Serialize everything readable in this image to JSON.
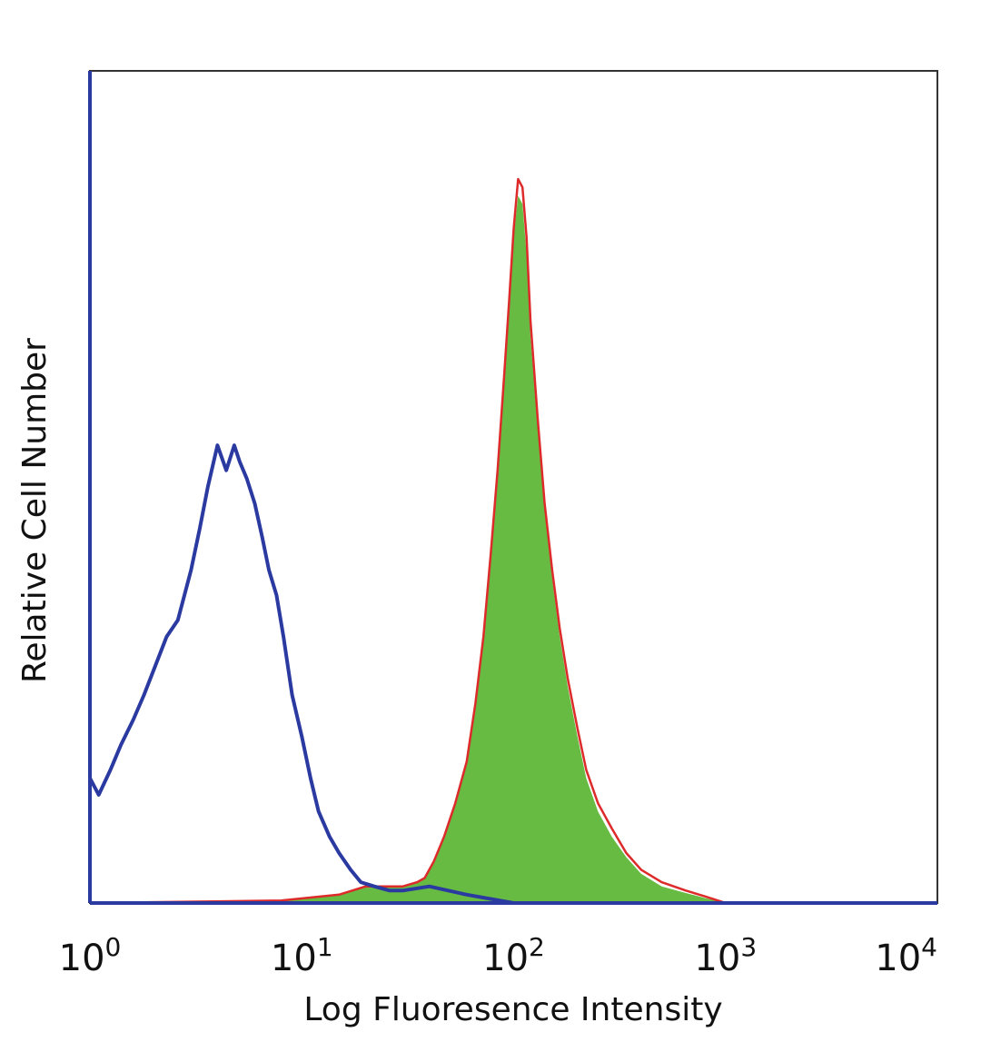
{
  "chart_data": {
    "type": "area",
    "title": "",
    "xlabel": "Log Fluoresence Intensity",
    "ylabel": "Relative Cell Number",
    "x_scale": "log",
    "xlim": [
      1,
      10000
    ],
    "ylim": [
      0,
      1
    ],
    "grid": false,
    "legend": "none",
    "x_ticks": [
      {
        "base": "10",
        "exp": "0",
        "value": 1
      },
      {
        "base": "10",
        "exp": "1",
        "value": 10
      },
      {
        "base": "10",
        "exp": "2",
        "value": 100
      },
      {
        "base": "10",
        "exp": "3",
        "value": 1000
      },
      {
        "base": "10",
        "exp": "4",
        "value": 10000
      }
    ],
    "series": [
      {
        "color": "#2a3aa0",
        "style": "outline",
        "x": [
          1.0,
          1.1,
          1.25,
          1.4,
          1.6,
          1.8,
          2.0,
          2.3,
          2.6,
          3.0,
          3.3,
          3.6,
          4.0,
          4.4,
          4.8,
          5.1,
          5.5,
          6.0,
          6.5,
          7.0,
          7.6,
          8.2,
          9.0,
          10.0,
          11.0,
          12.0,
          13.5,
          15.0,
          17.0,
          19.0,
          22.0,
          26.0,
          30.0,
          40.0,
          60.0,
          100.0
        ],
        "y": [
          0.15,
          0.13,
          0.16,
          0.19,
          0.22,
          0.25,
          0.28,
          0.32,
          0.34,
          0.4,
          0.45,
          0.5,
          0.55,
          0.52,
          0.55,
          0.53,
          0.51,
          0.48,
          0.44,
          0.4,
          0.37,
          0.32,
          0.25,
          0.2,
          0.15,
          0.11,
          0.08,
          0.06,
          0.04,
          0.025,
          0.02,
          0.015,
          0.015,
          0.02,
          0.01,
          0.0
        ]
      },
      {
        "color": "#dd2a2a",
        "style": "outline",
        "x": [
          1.0,
          8.0,
          15.0,
          20.0,
          25.0,
          30.0,
          35.0,
          38.0,
          42.0,
          47.0,
          53.0,
          60.0,
          66.0,
          72.0,
          78.0,
          84.0,
          90.0,
          95.0,
          100.0,
          105.0,
          110.0,
          115.0,
          120.0,
          130.0,
          140.0,
          152.0,
          165.0,
          180.0,
          200.0,
          220.0,
          250.0,
          290.0,
          340.0,
          400.0,
          500.0,
          650.0,
          800.0,
          1000.0,
          10000.0
        ],
        "y": [
          0.0,
          0.003,
          0.01,
          0.02,
          0.02,
          0.02,
          0.025,
          0.03,
          0.05,
          0.08,
          0.12,
          0.17,
          0.24,
          0.32,
          0.42,
          0.52,
          0.63,
          0.72,
          0.81,
          0.87,
          0.86,
          0.8,
          0.7,
          0.58,
          0.48,
          0.4,
          0.33,
          0.27,
          0.21,
          0.16,
          0.12,
          0.09,
          0.06,
          0.04,
          0.025,
          0.015,
          0.008,
          0.0,
          0.0
        ]
      },
      {
        "color": "#67bb42",
        "style": "filled",
        "x": [
          1.0,
          8.0,
          15.0,
          20.0,
          25.0,
          30.0,
          35.0,
          38.0,
          42.0,
          47.0,
          53.0,
          60.0,
          66.0,
          72.0,
          78.0,
          84.0,
          90.0,
          95.0,
          100.0,
          105.0,
          110.0,
          115.0,
          120.0,
          130.0,
          140.0,
          152.0,
          165.0,
          180.0,
          200.0,
          220.0,
          250.0,
          290.0,
          340.0,
          400.0,
          500.0,
          650.0,
          800.0,
          1000.0,
          10000.0
        ],
        "y": [
          0.0,
          0.003,
          0.01,
          0.02,
          0.02,
          0.02,
          0.025,
          0.03,
          0.05,
          0.08,
          0.12,
          0.17,
          0.24,
          0.32,
          0.42,
          0.52,
          0.63,
          0.72,
          0.8,
          0.85,
          0.84,
          0.78,
          0.68,
          0.57,
          0.47,
          0.39,
          0.32,
          0.26,
          0.2,
          0.15,
          0.11,
          0.08,
          0.055,
          0.035,
          0.02,
          0.012,
          0.006,
          0.0,
          0.0
        ]
      }
    ]
  },
  "colors": {
    "frame": "#333333",
    "left_axis": "#2a3aa0",
    "bottom_axis": "#2a3aa0"
  }
}
